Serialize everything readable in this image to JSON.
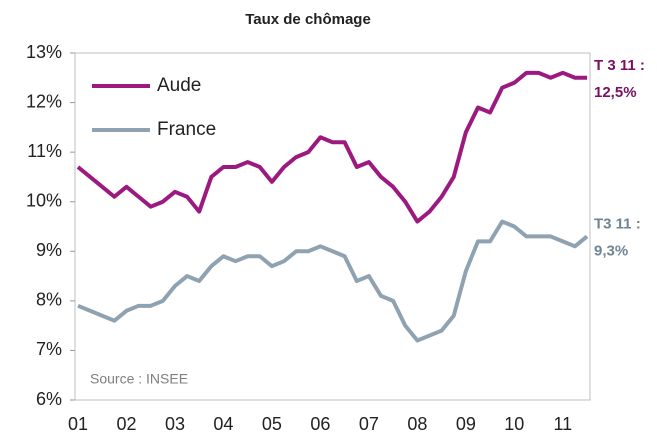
{
  "chart_data": {
    "type": "line",
    "title": "Taux de chômage",
    "source": "Source : INSEE",
    "categories": [
      "01",
      null,
      null,
      null,
      "02",
      null,
      null,
      null,
      "03",
      null,
      null,
      null,
      "04",
      null,
      null,
      null,
      "05",
      null,
      null,
      null,
      "06",
      null,
      null,
      null,
      "07",
      null,
      null,
      null,
      "08",
      null,
      null,
      null,
      "09",
      null,
      null,
      null,
      "10",
      null,
      null,
      null,
      "11",
      null,
      null
    ],
    "series": [
      {
        "name": "Aude",
        "color": "#9c1a80",
        "annotation": [
          "T 3 11 :",
          "12,5%"
        ],
        "values": [
          10.7,
          10.5,
          10.3,
          10.1,
          10.3,
          10.1,
          9.9,
          10.0,
          10.2,
          10.1,
          9.8,
          10.5,
          10.7,
          10.7,
          10.8,
          10.7,
          10.4,
          10.7,
          10.9,
          11.0,
          11.3,
          11.2,
          11.2,
          10.7,
          10.8,
          10.5,
          10.3,
          10.0,
          9.6,
          9.8,
          10.1,
          10.5,
          11.4,
          11.9,
          11.8,
          12.3,
          12.4,
          12.6,
          12.6,
          12.5,
          12.6,
          12.5,
          12.5
        ]
      },
      {
        "name": "France",
        "color": "#8fa2b1",
        "annotation": [
          "T3 11 :",
          "9,3%"
        ],
        "values": [
          7.9,
          7.8,
          7.7,
          7.6,
          7.8,
          7.9,
          7.9,
          8.0,
          8.3,
          8.5,
          8.4,
          8.7,
          8.9,
          8.8,
          8.9,
          8.9,
          8.7,
          8.8,
          9.0,
          9.0,
          9.1,
          9.0,
          8.9,
          8.4,
          8.5,
          8.1,
          8.0,
          7.5,
          7.2,
          7.3,
          7.4,
          7.7,
          8.6,
          9.2,
          9.2,
          9.6,
          9.5,
          9.3,
          9.3,
          9.3,
          9.2,
          9.1,
          9.3
        ]
      }
    ],
    "ylim": [
      6,
      13
    ],
    "yticks": [
      {
        "value": 6,
        "label": "6%"
      },
      {
        "value": 7,
        "label": "7%"
      },
      {
        "value": 8,
        "label": "8%"
      },
      {
        "value": 9,
        "label": "9%"
      },
      {
        "value": 10,
        "label": "10%"
      },
      {
        "value": 11,
        "label": "11%"
      },
      {
        "value": 12,
        "label": "12%"
      },
      {
        "value": 13,
        "label": "13%"
      }
    ]
  }
}
